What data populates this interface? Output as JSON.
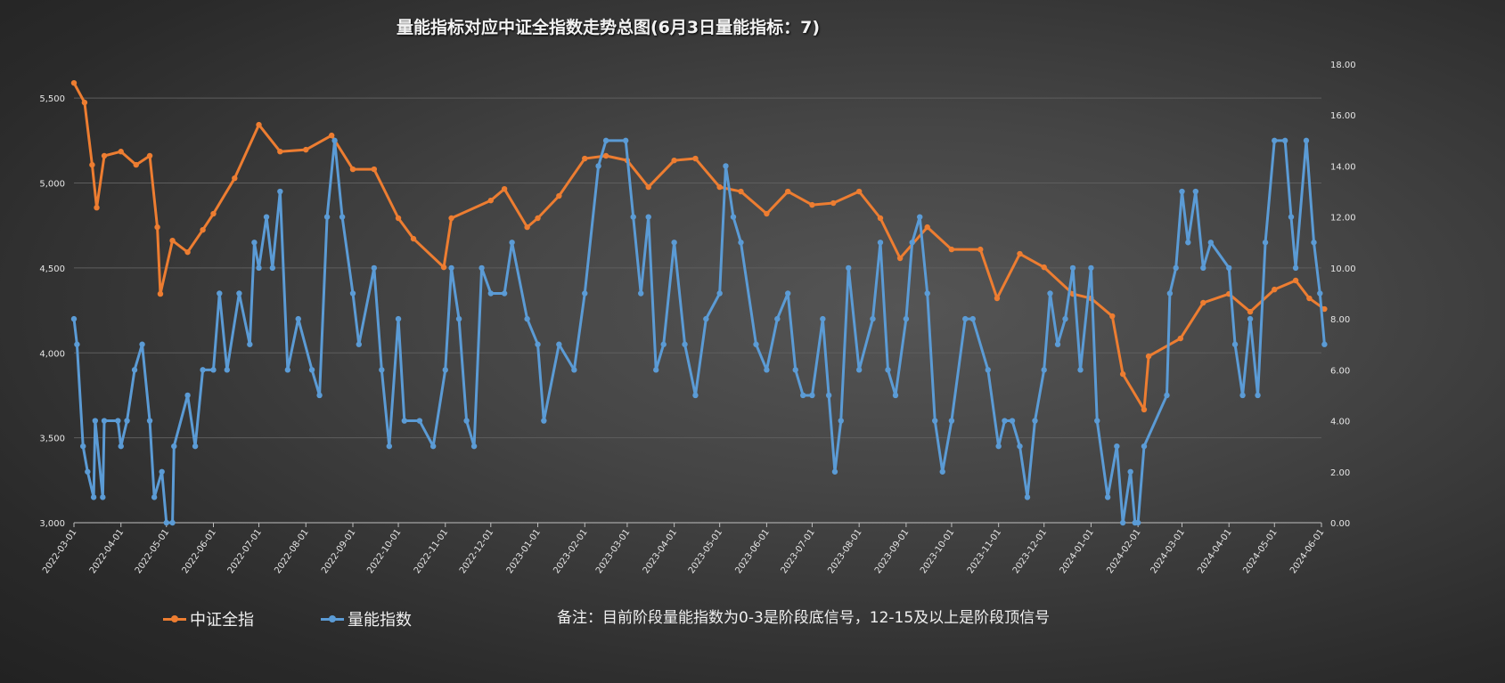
{
  "chart_data": {
    "type": "line",
    "title": "量能指标对应中证全指数走势总图(6月3日量能指标：7)",
    "note": "备注：目前阶段量能指数为0-3是阶段底信号，12-15及以上是阶段顶信号",
    "legend_position": "bottom-left",
    "grid": "horizontal",
    "x_range": [
      "2022-03-01",
      "2024-06-03"
    ],
    "x_ticks": [
      "2022-03-01",
      "2022-04-01",
      "2022-05-01",
      "2022-06-01",
      "2022-07-01",
      "2022-08-01",
      "2022-09-01",
      "2022-10-01",
      "2022-11-01",
      "2022-12-01",
      "2023-01-01",
      "2023-02-01",
      "2023-03-01",
      "2023-04-01",
      "2023-05-01",
      "2023-06-01",
      "2023-07-01",
      "2023-08-01",
      "2023-09-01",
      "2023-10-01",
      "2023-11-01",
      "2023-12-01",
      "2024-01-01",
      "2024-02-01",
      "2024-03-01",
      "2024-04-01",
      "2024-05-01",
      "2024-06-01"
    ],
    "y_left": {
      "range": [
        3000,
        5700
      ],
      "ticks": [
        "3,000",
        "3,500",
        "4,000",
        "4,500",
        "5,000",
        "5,500"
      ],
      "tick_values": [
        3000,
        3500,
        4000,
        4500,
        5000,
        5500
      ]
    },
    "y_right": {
      "range": [
        0,
        18
      ],
      "ticks": [
        "0.00",
        "2.00",
        "4.00",
        "6.00",
        "8.00",
        "10.00",
        "12.00",
        "14.00",
        "16.00",
        "18.00"
      ],
      "tick_values": [
        0,
        2,
        4,
        6,
        8,
        10,
        12,
        14,
        16,
        18
      ]
    },
    "series": [
      {
        "name": "中证全指",
        "axis": "left",
        "color": "#ED7D31",
        "points": [
          [
            "2022-03-01",
            5589
          ],
          [
            "2022-03-08",
            5474
          ],
          [
            "2022-03-13",
            5107
          ],
          [
            "2022-03-16",
            4855
          ],
          [
            "2022-03-21",
            5160
          ],
          [
            "2022-04-01",
            5185
          ],
          [
            "2022-04-11",
            5107
          ],
          [
            "2022-04-20",
            5160
          ],
          [
            "2022-04-25",
            4740
          ],
          [
            "2022-04-27",
            4347
          ],
          [
            "2022-05-05",
            4661
          ],
          [
            "2022-05-15",
            4593
          ],
          [
            "2022-05-25",
            4724
          ],
          [
            "2022-06-01",
            4819
          ],
          [
            "2022-06-15",
            5028
          ],
          [
            "2022-07-01",
            5343
          ],
          [
            "2022-07-15",
            5185
          ],
          [
            "2022-08-01",
            5196
          ],
          [
            "2022-08-18",
            5280
          ],
          [
            "2022-09-01",
            5081
          ],
          [
            "2022-09-15",
            5081
          ],
          [
            "2022-10-01",
            4793
          ],
          [
            "2022-10-11",
            4672
          ],
          [
            "2022-10-31",
            4504
          ],
          [
            "2022-11-05",
            4793
          ],
          [
            "2022-12-01",
            4897
          ],
          [
            "2022-12-10",
            4965
          ],
          [
            "2022-12-25",
            4740
          ],
          [
            "2023-01-01",
            4793
          ],
          [
            "2023-01-15",
            4924
          ],
          [
            "2023-02-01",
            5144
          ],
          [
            "2023-02-15",
            5160
          ],
          [
            "2023-03-01",
            5133
          ],
          [
            "2023-03-15",
            4976
          ],
          [
            "2023-04-01",
            5133
          ],
          [
            "2023-04-15",
            5144
          ],
          [
            "2023-05-01",
            4976
          ],
          [
            "2023-05-15",
            4950
          ],
          [
            "2023-06-01",
            4819
          ],
          [
            "2023-06-15",
            4950
          ],
          [
            "2023-07-01",
            4871
          ],
          [
            "2023-07-15",
            4882
          ],
          [
            "2023-08-01",
            4950
          ],
          [
            "2023-08-15",
            4793
          ],
          [
            "2023-08-28",
            4557
          ],
          [
            "2023-09-15",
            4740
          ],
          [
            "2023-10-01",
            4609
          ],
          [
            "2023-10-20",
            4609
          ],
          [
            "2023-10-31",
            4321
          ],
          [
            "2023-11-15",
            4583
          ],
          [
            "2023-12-01",
            4504
          ],
          [
            "2023-12-20",
            4347
          ],
          [
            "2024-01-01",
            4321
          ],
          [
            "2024-01-15",
            4216
          ],
          [
            "2024-01-22",
            3875
          ],
          [
            "2024-02-05",
            3666
          ],
          [
            "2024-02-08",
            3980
          ],
          [
            "2024-02-29",
            4085
          ],
          [
            "2024-03-15",
            4295
          ],
          [
            "2024-04-01",
            4347
          ],
          [
            "2024-04-15",
            4242
          ],
          [
            "2024-05-01",
            4373
          ],
          [
            "2024-05-15",
            4426
          ],
          [
            "2024-05-24",
            4321
          ],
          [
            "2024-06-03",
            4258
          ]
        ]
      },
      {
        "name": "量能指数",
        "axis": "right",
        "color": "#5B9BD5",
        "points": [
          [
            "2022-03-01",
            8
          ],
          [
            "2022-03-03",
            7
          ],
          [
            "2022-03-07",
            3
          ],
          [
            "2022-03-10",
            2
          ],
          [
            "2022-03-14",
            1
          ],
          [
            "2022-03-15",
            4
          ],
          [
            "2022-03-20",
            1
          ],
          [
            "2022-03-21",
            4
          ],
          [
            "2022-03-30",
            4
          ],
          [
            "2022-04-01",
            3
          ],
          [
            "2022-04-05",
            4
          ],
          [
            "2022-04-10",
            6
          ],
          [
            "2022-04-15",
            7
          ],
          [
            "2022-04-20",
            4
          ],
          [
            "2022-04-23",
            1
          ],
          [
            "2022-04-28",
            2
          ],
          [
            "2022-05-01",
            0
          ],
          [
            "2022-05-05",
            0
          ],
          [
            "2022-05-06",
            3
          ],
          [
            "2022-05-15",
            5
          ],
          [
            "2022-05-20",
            3
          ],
          [
            "2022-05-25",
            6
          ],
          [
            "2022-06-01",
            6
          ],
          [
            "2022-06-05",
            9
          ],
          [
            "2022-06-10",
            6
          ],
          [
            "2022-06-18",
            9
          ],
          [
            "2022-06-25",
            7
          ],
          [
            "2022-06-28",
            11
          ],
          [
            "2022-07-01",
            10
          ],
          [
            "2022-07-06",
            12
          ],
          [
            "2022-07-10",
            10
          ],
          [
            "2022-07-15",
            13
          ],
          [
            "2022-07-20",
            6
          ],
          [
            "2022-07-27",
            8
          ],
          [
            "2022-08-05",
            6
          ],
          [
            "2022-08-10",
            5
          ],
          [
            "2022-08-15",
            12
          ],
          [
            "2022-08-20",
            15
          ],
          [
            "2022-08-25",
            12
          ],
          [
            "2022-09-01",
            9
          ],
          [
            "2022-09-05",
            7
          ],
          [
            "2022-09-15",
            10
          ],
          [
            "2022-09-20",
            6
          ],
          [
            "2022-09-25",
            3
          ],
          [
            "2022-10-01",
            8
          ],
          [
            "2022-10-05",
            4
          ],
          [
            "2022-10-15",
            4
          ],
          [
            "2022-10-24",
            3
          ],
          [
            "2022-11-01",
            6
          ],
          [
            "2022-11-05",
            10
          ],
          [
            "2022-11-10",
            8
          ],
          [
            "2022-11-15",
            4
          ],
          [
            "2022-11-20",
            3
          ],
          [
            "2022-11-25",
            10
          ],
          [
            "2022-12-01",
            9
          ],
          [
            "2022-12-10",
            9
          ],
          [
            "2022-12-15",
            11
          ],
          [
            "2022-12-25",
            8
          ],
          [
            "2023-01-01",
            7
          ],
          [
            "2023-01-05",
            4
          ],
          [
            "2023-01-15",
            7
          ],
          [
            "2023-01-25",
            6
          ],
          [
            "2023-02-01",
            9
          ],
          [
            "2023-02-10",
            14
          ],
          [
            "2023-02-15",
            15
          ],
          [
            "2023-02-28",
            15
          ],
          [
            "2023-03-05",
            12
          ],
          [
            "2023-03-10",
            9
          ],
          [
            "2023-03-15",
            12
          ],
          [
            "2023-03-20",
            6
          ],
          [
            "2023-03-25",
            7
          ],
          [
            "2023-04-01",
            11
          ],
          [
            "2023-04-08",
            7
          ],
          [
            "2023-04-15",
            5
          ],
          [
            "2023-04-22",
            8
          ],
          [
            "2023-05-01",
            9
          ],
          [
            "2023-05-05",
            14
          ],
          [
            "2023-05-10",
            12
          ],
          [
            "2023-05-15",
            11
          ],
          [
            "2023-05-25",
            7
          ],
          [
            "2023-06-01",
            6
          ],
          [
            "2023-06-08",
            8
          ],
          [
            "2023-06-15",
            9
          ],
          [
            "2023-06-20",
            6
          ],
          [
            "2023-06-25",
            5
          ],
          [
            "2023-07-01",
            5
          ],
          [
            "2023-07-08",
            8
          ],
          [
            "2023-07-12",
            5
          ],
          [
            "2023-07-16",
            2
          ],
          [
            "2023-07-20",
            4
          ],
          [
            "2023-07-25",
            10
          ],
          [
            "2023-08-01",
            6
          ],
          [
            "2023-08-10",
            8
          ],
          [
            "2023-08-15",
            11
          ],
          [
            "2023-08-20",
            6
          ],
          [
            "2023-08-25",
            5
          ],
          [
            "2023-09-01",
            8
          ],
          [
            "2023-09-05",
            11
          ],
          [
            "2023-09-10",
            12
          ],
          [
            "2023-09-15",
            9
          ],
          [
            "2023-09-20",
            4
          ],
          [
            "2023-09-25",
            2
          ],
          [
            "2023-10-01",
            4
          ],
          [
            "2023-10-10",
            8
          ],
          [
            "2023-10-15",
            8
          ],
          [
            "2023-10-25",
            6
          ],
          [
            "2023-11-01",
            3
          ],
          [
            "2023-11-05",
            4
          ],
          [
            "2023-11-10",
            4
          ],
          [
            "2023-11-15",
            3
          ],
          [
            "2023-11-20",
            1
          ],
          [
            "2023-11-25",
            4
          ],
          [
            "2023-12-01",
            6
          ],
          [
            "2023-12-05",
            9
          ],
          [
            "2023-12-10",
            7
          ],
          [
            "2023-12-15",
            8
          ],
          [
            "2023-12-20",
            10
          ],
          [
            "2023-12-25",
            6
          ],
          [
            "2024-01-01",
            10
          ],
          [
            "2024-01-05",
            4
          ],
          [
            "2024-01-12",
            1
          ],
          [
            "2024-01-18",
            3
          ],
          [
            "2024-01-22",
            0
          ],
          [
            "2024-01-27",
            2
          ],
          [
            "2024-01-30",
            0
          ],
          [
            "2024-02-01",
            0
          ],
          [
            "2024-02-05",
            3
          ],
          [
            "2024-02-20",
            5
          ],
          [
            "2024-02-22",
            9
          ],
          [
            "2024-02-26",
            10
          ],
          [
            "2024-03-01",
            13
          ],
          [
            "2024-03-05",
            11
          ],
          [
            "2024-03-10",
            13
          ],
          [
            "2024-03-15",
            10
          ],
          [
            "2024-03-20",
            11
          ],
          [
            "2024-04-01",
            10
          ],
          [
            "2024-04-05",
            7
          ],
          [
            "2024-04-10",
            5
          ],
          [
            "2024-04-15",
            8
          ],
          [
            "2024-04-20",
            5
          ],
          [
            "2024-04-25",
            11
          ],
          [
            "2024-05-01",
            15
          ],
          [
            "2024-05-08",
            15
          ],
          [
            "2024-05-12",
            12
          ],
          [
            "2024-05-15",
            10
          ],
          [
            "2024-05-22",
            15
          ],
          [
            "2024-05-27",
            11
          ],
          [
            "2024-05-31",
            9
          ],
          [
            "2024-06-03",
            7
          ]
        ]
      }
    ]
  }
}
